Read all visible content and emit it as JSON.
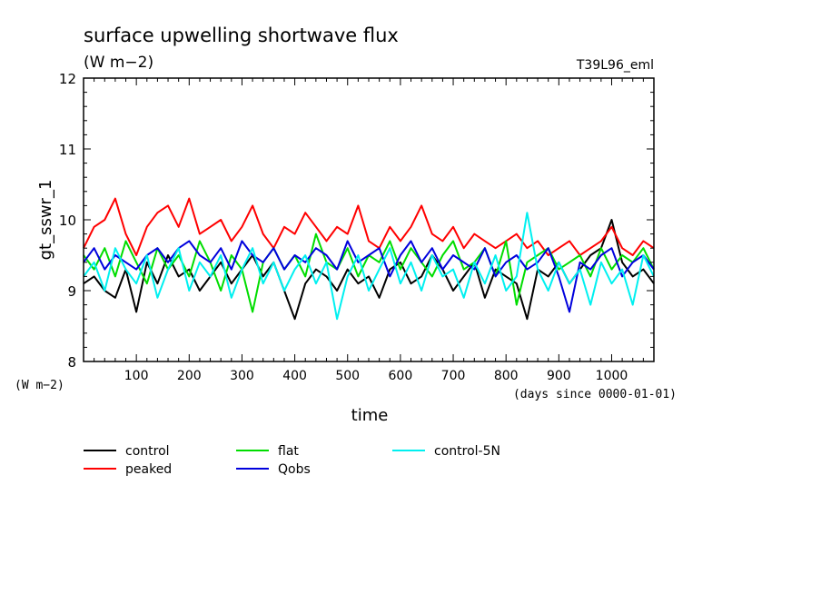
{
  "chart_data": {
    "type": "line",
    "title": "surface upwelling shortwave flux",
    "units_label": "(W m−2)",
    "experiment_label": "T39L96_eml",
    "ylabel": "gt_sswr_1",
    "y_units_label": "(W m−2)",
    "xlabel": "time",
    "x_units_label": "(days since 0000-01-01)",
    "xlim": [
      0,
      1080
    ],
    "ylim": [
      8,
      12
    ],
    "x_ticks": [
      100,
      200,
      300,
      400,
      500,
      600,
      700,
      800,
      900,
      1000
    ],
    "y_ticks": [
      8,
      9,
      10,
      11,
      12
    ],
    "grid": false,
    "legend_position": "below",
    "series": [
      {
        "name": "control",
        "color": "#000000",
        "x": [
          0,
          20,
          40,
          60,
          80,
          100,
          120,
          140,
          160,
          180,
          200,
          220,
          240,
          260,
          280,
          300,
          320,
          340,
          360,
          380,
          400,
          420,
          440,
          460,
          480,
          500,
          520,
          540,
          560,
          580,
          600,
          620,
          640,
          660,
          680,
          700,
          720,
          740,
          760,
          780,
          800,
          820,
          840,
          860,
          880,
          900,
          920,
          940,
          960,
          980,
          1000,
          1020,
          1040,
          1060,
          1080
        ],
        "values": [
          9.1,
          9.2,
          9.0,
          8.9,
          9.3,
          8.7,
          9.4,
          9.1,
          9.5,
          9.2,
          9.3,
          9.0,
          9.2,
          9.4,
          9.1,
          9.3,
          9.5,
          9.2,
          9.4,
          9.0,
          8.6,
          9.1,
          9.3,
          9.2,
          9.0,
          9.3,
          9.1,
          9.2,
          8.9,
          9.3,
          9.4,
          9.1,
          9.2,
          9.5,
          9.3,
          9.0,
          9.2,
          9.4,
          8.9,
          9.3,
          9.2,
          9.1,
          8.6,
          9.3,
          9.2,
          9.4,
          9.1,
          9.3,
          9.5,
          9.6,
          10.0,
          9.4,
          9.2,
          9.3,
          9.1
        ]
      },
      {
        "name": "peaked",
        "color": "#ff0000",
        "x": [
          0,
          20,
          40,
          60,
          80,
          100,
          120,
          140,
          160,
          180,
          200,
          220,
          240,
          260,
          280,
          300,
          320,
          340,
          360,
          380,
          400,
          420,
          440,
          460,
          480,
          500,
          520,
          540,
          560,
          580,
          600,
          620,
          640,
          660,
          680,
          700,
          720,
          740,
          760,
          780,
          800,
          820,
          840,
          860,
          880,
          900,
          920,
          940,
          960,
          980,
          1000,
          1020,
          1040,
          1060,
          1080
        ],
        "values": [
          9.6,
          9.9,
          10.0,
          10.3,
          9.8,
          9.5,
          9.9,
          10.1,
          10.2,
          9.9,
          10.3,
          9.8,
          9.9,
          10.0,
          9.7,
          9.9,
          10.2,
          9.8,
          9.6,
          9.9,
          9.8,
          10.1,
          9.9,
          9.7,
          9.9,
          9.8,
          10.2,
          9.7,
          9.6,
          9.9,
          9.7,
          9.9,
          10.2,
          9.8,
          9.7,
          9.9,
          9.6,
          9.8,
          9.7,
          9.6,
          9.7,
          9.8,
          9.6,
          9.7,
          9.5,
          9.6,
          9.7,
          9.5,
          9.6,
          9.7,
          9.9,
          9.6,
          9.5,
          9.7,
          9.6
        ]
      },
      {
        "name": "flat",
        "color": "#00dd00",
        "x": [
          0,
          20,
          40,
          60,
          80,
          100,
          120,
          140,
          160,
          180,
          200,
          220,
          240,
          260,
          280,
          300,
          320,
          340,
          360,
          380,
          400,
          420,
          440,
          460,
          480,
          500,
          520,
          540,
          560,
          580,
          600,
          620,
          640,
          660,
          680,
          700,
          720,
          740,
          760,
          780,
          800,
          820,
          840,
          860,
          880,
          900,
          920,
          940,
          960,
          980,
          1000,
          1020,
          1040,
          1060,
          1080
        ],
        "values": [
          9.5,
          9.3,
          9.6,
          9.2,
          9.7,
          9.4,
          9.1,
          9.6,
          9.3,
          9.5,
          9.2,
          9.7,
          9.4,
          9.0,
          9.5,
          9.3,
          8.7,
          9.4,
          9.6,
          9.3,
          9.5,
          9.2,
          9.8,
          9.4,
          9.3,
          9.6,
          9.2,
          9.5,
          9.4,
          9.7,
          9.3,
          9.6,
          9.4,
          9.2,
          9.5,
          9.7,
          9.3,
          9.4,
          9.6,
          9.2,
          9.7,
          8.8,
          9.4,
          9.5,
          9.6,
          9.3,
          9.4,
          9.5,
          9.2,
          9.6,
          9.3,
          9.5,
          9.4,
          9.6,
          9.3
        ]
      },
      {
        "name": "Qobs",
        "color": "#0000dd",
        "x": [
          0,
          20,
          40,
          60,
          80,
          100,
          120,
          140,
          160,
          180,
          200,
          220,
          240,
          260,
          280,
          300,
          320,
          340,
          360,
          380,
          400,
          420,
          440,
          460,
          480,
          500,
          520,
          540,
          560,
          580,
          600,
          620,
          640,
          660,
          680,
          700,
          720,
          740,
          760,
          780,
          800,
          820,
          840,
          860,
          880,
          900,
          920,
          940,
          960,
          980,
          1000,
          1020,
          1040,
          1060,
          1080
        ],
        "values": [
          9.4,
          9.6,
          9.3,
          9.5,
          9.4,
          9.3,
          9.5,
          9.6,
          9.4,
          9.6,
          9.7,
          9.5,
          9.4,
          9.6,
          9.3,
          9.7,
          9.5,
          9.4,
          9.6,
          9.3,
          9.5,
          9.4,
          9.6,
          9.5,
          9.3,
          9.7,
          9.4,
          9.5,
          9.6,
          9.2,
          9.5,
          9.7,
          9.4,
          9.6,
          9.3,
          9.5,
          9.4,
          9.3,
          9.6,
          9.2,
          9.4,
          9.5,
          9.3,
          9.4,
          9.6,
          9.2,
          8.7,
          9.4,
          9.3,
          9.5,
          9.6,
          9.2,
          9.4,
          9.5,
          9.3
        ]
      },
      {
        "name": "control-5N",
        "color": "#00f0f0",
        "x": [
          0,
          20,
          40,
          60,
          80,
          100,
          120,
          140,
          160,
          180,
          200,
          220,
          240,
          260,
          280,
          300,
          320,
          340,
          360,
          380,
          400,
          420,
          440,
          460,
          480,
          500,
          520,
          540,
          560,
          580,
          600,
          620,
          640,
          660,
          680,
          700,
          720,
          740,
          760,
          780,
          800,
          820,
          840,
          860,
          880,
          900,
          920,
          940,
          960,
          980,
          1000,
          1020,
          1040,
          1060,
          1080
        ],
        "values": [
          9.2,
          9.4,
          9.0,
          9.6,
          9.3,
          9.1,
          9.5,
          8.9,
          9.3,
          9.6,
          9.0,
          9.4,
          9.2,
          9.5,
          8.9,
          9.3,
          9.6,
          9.1,
          9.4,
          9.0,
          9.3,
          9.5,
          9.1,
          9.4,
          8.6,
          9.2,
          9.5,
          9.0,
          9.3,
          9.6,
          9.1,
          9.4,
          9.0,
          9.5,
          9.2,
          9.3,
          8.9,
          9.4,
          9.1,
          9.5,
          9.0,
          9.2,
          10.1,
          9.3,
          9.0,
          9.4,
          9.1,
          9.3,
          8.8,
          9.4,
          9.1,
          9.3,
          8.8,
          9.5,
          9.2
        ]
      }
    ]
  }
}
